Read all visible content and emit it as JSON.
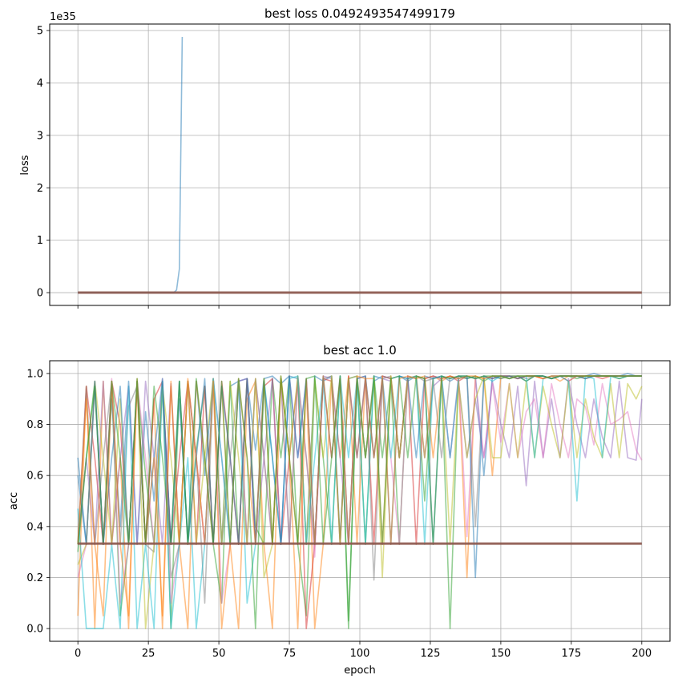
{
  "chart_data": [
    {
      "type": "line",
      "title": "best loss 0.0492493547499179",
      "xlabel": "",
      "ylabel": "loss",
      "offset_text": "1e35",
      "scale": 1e+35,
      "xlim": [
        -10,
        210
      ],
      "ylim": [
        -0.244,
        5.124
      ],
      "xticks": [
        0,
        25,
        50,
        75,
        100,
        125,
        150,
        175,
        200
      ],
      "yticks": [
        0,
        1,
        2,
        3,
        4,
        5
      ],
      "ytick_labels": [
        "0",
        "1",
        "2",
        "3",
        "4",
        "5"
      ],
      "grid": true,
      "series": [
        {
          "color": "#1f77b4",
          "alpha": 0.5,
          "x": [
            0,
            10,
            20,
            30,
            34,
            35,
            36,
            37
          ],
          "y": [
            0,
            0,
            0,
            0,
            0,
            0.05,
            0.45,
            4.88
          ]
        },
        {
          "color": "#8c564b",
          "alpha": 0.9,
          "x": [
            0,
            200
          ],
          "y": [
            0,
            0
          ]
        }
      ]
    },
    {
      "type": "line",
      "title": "best acc 1.0",
      "xlabel": "epoch",
      "ylabel": "acc",
      "xlim": [
        -10,
        210
      ],
      "ylim": [
        -0.05,
        1.05
      ],
      "xticks": [
        0,
        25,
        50,
        75,
        100,
        125,
        150,
        175,
        200
      ],
      "xtick_labels": [
        "0",
        "25",
        "50",
        "75",
        "100",
        "125",
        "150",
        "175",
        "200"
      ],
      "yticks": [
        0,
        0.2,
        0.4,
        0.6,
        0.8,
        1.0
      ],
      "ytick_labels": [
        "0.0",
        "0.2",
        "0.4",
        "0.6",
        "0.8",
        "1.0"
      ],
      "grid": true,
      "x_step": 3,
      "series": [
        {
          "color": "#1f77b4",
          "alpha": 0.5,
          "y": [
            0.67,
            0.33,
            0.95,
            0.33,
            0.9,
            0.4,
            0.97,
            0.33,
            0.85,
            0.5,
            0.96,
            0.33,
            0.9,
            0.35,
            0.97,
            0.6,
            0.98,
            0.33,
            0.95,
            0.97,
            0.98,
            0.7,
            0.98,
            0.99,
            0.96,
            0.99,
            0.98,
            0.33,
            0.99,
            0.97,
            0.99,
            0.35,
            0.98,
            0.99,
            0.67,
            0.97,
            0.99,
            0.98,
            0.99,
            0.97,
            0.99,
            0.98,
            0.33,
            0.99,
            0.97,
            0.99,
            0.98,
            0.99,
            0.6,
            0.99,
            0.99,
            0.98,
            0.99,
            0.97,
            0.99,
            0.99,
            0.98,
            0.99,
            0.99,
            0.99,
            0.99,
            1.0,
            0.99,
            0.99,
            0.99,
            1.0,
            0.99,
            0.99
          ]
        },
        {
          "color": "#ff7f0e",
          "alpha": 0.5,
          "y": [
            0.05,
            0.95,
            0.0,
            0.97,
            0.33,
            0.67,
            0.0,
            0.97,
            0.33,
            0.9,
            0.0,
            0.95,
            0.33,
            0.0,
            0.97,
            0.67,
            0.33,
            0.95,
            0.33,
            0.0,
            0.9,
            0.97,
            0.33,
            0.0,
            0.98,
            0.67,
            0.33,
            0.97,
            0.0,
            0.33,
            0.98,
            0.67,
            0.99,
            0.33,
            0.98,
            0.98,
            0.33,
            0.99,
            0.67,
            0.98,
            0.99,
            0.98,
            0.99,
            0.97,
            0.99,
            0.98,
            0.2,
            0.99,
            0.98,
            0.6,
            0.99,
            0.99,
            0.98,
            0.99,
            0.99,
            0.98,
            0.99,
            0.97,
            0.99,
            0.99,
            0.98,
            0.99,
            0.99,
            0.99,
            0.98,
            0.99,
            0.99,
            0.99
          ]
        },
        {
          "color": "#2ca02c",
          "alpha": 0.5,
          "y": [
            0.3,
            0.67,
            0.97,
            0.33,
            0.95,
            0.05,
            0.33,
            0.97,
            0.6,
            0.33,
            0.95,
            0.0,
            0.97,
            0.33,
            0.7,
            0.95,
            0.33,
            0.1,
            0.97,
            0.33,
            0.98,
            0.4,
            0.33,
            0.98,
            0.67,
            0.99,
            0.33,
            0.05,
            0.98,
            0.67,
            0.33,
            0.99,
            0.0,
            0.98,
            0.33,
            0.99,
            0.67,
            0.98,
            0.33,
            0.99,
            0.98,
            0.5,
            0.99,
            0.98,
            0.0,
            0.99,
            0.98,
            0.99,
            0.97,
            0.99,
            0.98,
            0.99,
            0.99,
            0.97,
            0.99,
            0.99,
            0.98,
            0.99,
            0.99,
            0.98,
            0.99,
            0.99,
            0.99,
            0.99,
            0.98,
            0.99,
            0.99,
            0.99
          ]
        },
        {
          "color": "#d62728",
          "alpha": 0.5,
          "y": [
            0.33,
            0.95,
            0.67,
            0.33,
            0.97,
            0.8,
            0.33,
            0.95,
            0.33,
            0.9,
            0.97,
            0.33,
            0.67,
            0.97,
            0.33,
            0.95,
            0.33,
            0.97,
            0.67,
            0.33,
            0.98,
            0.33,
            0.95,
            0.98,
            0.33,
            0.67,
            0.98,
            0.0,
            0.33,
            0.98,
            0.97,
            0.33,
            0.99,
            0.67,
            0.98,
            0.33,
            0.99,
            0.98,
            0.67,
            0.99,
            0.33,
            0.98,
            0.99,
            0.98,
            0.99,
            0.97,
            0.99,
            0.98,
            0.99,
            0.98,
            0.99,
            0.99,
            0.98,
            0.99,
            0.99,
            0.98,
            0.99,
            0.99,
            0.97,
            0.99,
            0.99,
            0.99,
            0.98,
            0.99,
            0.99,
            0.99,
            0.99,
            0.99
          ]
        },
        {
          "color": "#9467bd",
          "alpha": 0.5,
          "y": [
            0.33,
            0.67,
            0.33,
            0.97,
            0.33,
            0.67,
            0.95,
            0.33,
            0.97,
            0.67,
            0.33,
            0.96,
            0.33,
            0.97,
            0.67,
            0.33,
            0.98,
            0.67,
            0.33,
            0.97,
            0.98,
            0.33,
            0.67,
            0.98,
            0.33,
            0.99,
            0.67,
            0.98,
            0.33,
            0.99,
            0.98,
            0.67,
            0.33,
            0.98,
            0.99,
            0.67,
            0.98,
            0.97,
            0.67,
            0.98,
            0.99,
            0.67,
            0.95,
            0.98,
            0.67,
            0.97,
            0.67,
            0.9,
            0.67,
            0.97,
            0.8,
            0.67,
            0.95,
            0.56,
            0.97,
            0.67,
            0.9,
            0.67,
            0.98,
            0.8,
            0.67,
            0.9,
            0.75,
            0.67,
            0.97,
            0.67,
            0.66,
            0.9
          ]
        },
        {
          "color": "#e377c2",
          "alpha": 0.5,
          "y": [
            0.2,
            0.33,
            0.97,
            0.33,
            0.98,
            0.1,
            0.33,
            0.97,
            0.67,
            0.33,
            0.98,
            0.1,
            0.33,
            0.97,
            0.67,
            0.33,
            0.98,
            0.1,
            0.33,
            0.97,
            0.33,
            0.98,
            0.67,
            0.33,
            0.98,
            0.33,
            0.99,
            0.67,
            0.28,
            0.98,
            0.67,
            0.99,
            0.33,
            0.98,
            0.67,
            0.99,
            0.98,
            0.67,
            0.33,
            0.99,
            0.98,
            0.67,
            0.99,
            0.98,
            0.67,
            0.99,
            0.36,
            0.98,
            0.67,
            0.96,
            0.73,
            0.96,
            0.67,
            0.85,
            0.9,
            0.67,
            0.96,
            0.8,
            0.67,
            0.9,
            0.87,
            0.72,
            0.96,
            0.8,
            0.82,
            0.85,
            0.7,
            0.66
          ]
        },
        {
          "color": "#7f7f7f",
          "alpha": 0.5,
          "y": [
            0.33,
            0.95,
            0.33,
            0.67,
            0.97,
            0.33,
            0.87,
            0.95,
            0.33,
            0.3,
            0.97,
            0.2,
            0.33,
            0.97,
            0.67,
            0.1,
            0.97,
            0.33,
            0.67,
            0.98,
            0.33,
            0.98,
            0.67,
            0.33,
            0.98,
            0.33,
            0.99,
            0.67,
            0.33,
            0.98,
            0.99,
            0.33,
            0.98,
            0.67,
            0.99,
            0.19,
            0.98,
            0.99,
            0.67,
            0.98,
            0.99,
            0.97,
            0.98,
            0.67,
            0.99,
            0.98,
            0.99,
            0.4,
            0.98,
            0.99,
            0.98,
            0.99,
            0.99,
            0.98,
            0.99,
            0.99,
            0.98,
            0.99,
            0.99,
            0.99,
            0.98,
            0.99,
            0.99,
            0.99,
            0.99,
            0.99,
            0.99,
            0.99
          ]
        },
        {
          "color": "#bcbd22",
          "alpha": 0.5,
          "y": [
            0.25,
            0.33,
            0.97,
            0.67,
            0.33,
            0.9,
            0.33,
            0.97,
            0.0,
            0.33,
            0.95,
            0.67,
            0.33,
            0.97,
            0.33,
            0.67,
            0.98,
            0.33,
            0.97,
            0.67,
            0.33,
            0.98,
            0.2,
            0.33,
            0.98,
            0.67,
            0.99,
            0.33,
            0.98,
            0.67,
            0.99,
            0.33,
            0.98,
            0.99,
            0.67,
            0.98,
            0.2,
            0.99,
            0.67,
            0.98,
            0.99,
            0.67,
            0.98,
            0.99,
            0.33,
            0.97,
            0.67,
            0.9,
            0.99,
            0.67,
            0.67,
            0.96,
            0.67,
            0.97,
            0.67,
            0.95,
            0.8,
            0.67,
            0.97,
            0.67,
            0.9,
            0.75,
            0.67,
            0.96,
            0.67,
            0.96,
            0.9,
            0.95
          ]
        },
        {
          "color": "#17becf",
          "alpha": 0.5,
          "y": [
            0.47,
            0.0,
            0.0,
            0.0,
            0.33,
            0.0,
            0.95,
            0.0,
            0.33,
            0.0,
            0.97,
            0.0,
            0.33,
            0.67,
            0.0,
            0.33,
            0.98,
            0.67,
            0.33,
            0.97,
            0.1,
            0.33,
            0.98,
            0.67,
            0.33,
            0.98,
            0.99,
            0.33,
            0.67,
            0.98,
            0.33,
            0.99,
            0.67,
            0.98,
            0.33,
            0.99,
            0.98,
            0.67,
            0.99,
            0.98,
            0.99,
            0.33,
            0.98,
            0.99,
            0.67,
            0.98,
            0.99,
            0.98,
            0.99,
            0.97,
            0.99,
            0.98,
            0.99,
            0.99,
            0.67,
            0.98,
            0.99,
            0.99,
            0.97,
            0.5,
            0.99,
            0.98,
            0.67,
            0.99,
            0.98,
            0.99,
            0.99,
            0.99
          ]
        },
        {
          "color": "#1f77b4",
          "alpha": 0.5,
          "y": [
            0.6,
            0.33,
            0.97,
            0.33,
            0.67,
            0.95,
            0.33,
            0.97,
            0.33,
            0.67,
            0.98,
            0.33,
            0.97,
            0.33,
            0.67,
            0.98,
            0.33,
            0.95,
            0.67,
            0.33,
            0.98,
            0.33,
            0.97,
            0.67,
            0.33,
            0.99,
            0.67,
            0.98,
            0.33,
            0.99,
            0.67,
            0.98,
            0.33,
            0.98,
            0.99,
            0.67,
            0.98,
            0.33,
            0.99,
            0.98,
            0.67,
            0.99,
            0.98,
            0.99,
            0.98,
            0.99,
            0.99,
            0.2,
            0.99,
            0.98,
            0.99,
            0.99,
            0.98,
            0.99,
            0.99,
            0.99,
            0.98,
            0.99,
            0.99,
            0.99,
            0.98,
            0.99,
            0.99,
            0.99,
            0.99,
            0.99,
            0.99,
            0.99
          ]
        },
        {
          "color": "#ff7f0e",
          "alpha": 0.5,
          "y": [
            0.33,
            0.9,
            0.33,
            0.05,
            0.97,
            0.33,
            0.05,
            0.98,
            0.33,
            0.67,
            0.05,
            0.97,
            0.33,
            0.98,
            0.67,
            0.33,
            0.97,
            0.0,
            0.33,
            0.98,
            0.67,
            0.33,
            0.98,
            0.33,
            0.99,
            0.67,
            0.0,
            0.98,
            0.33,
            0.99,
            0.67,
            0.98,
            0.33,
            0.99,
            0.98,
            0.67,
            0.99,
            0.33,
            0.98,
            0.99,
            0.98,
            0.99,
            0.67,
            0.98,
            0.99,
            0.98,
            0.99,
            0.99,
            0.98,
            0.99,
            0.99,
            0.98,
            0.99,
            0.99,
            0.99,
            0.98,
            0.99,
            0.99,
            0.99,
            0.99,
            0.99,
            0.99,
            0.99,
            0.99,
            0.99,
            0.99,
            0.99,
            0.99
          ]
        },
        {
          "color": "#2ca02c",
          "alpha": 0.5,
          "y": [
            0.33,
            0.67,
            0.95,
            0.33,
            0.97,
            0.67,
            0.33,
            0.98,
            0.33,
            0.95,
            0.67,
            0.33,
            0.97,
            0.33,
            0.98,
            0.67,
            0.33,
            0.97,
            0.33,
            0.98,
            0.67,
            0.0,
            0.98,
            0.33,
            0.99,
            0.67,
            0.33,
            0.98,
            0.99,
            0.33,
            0.67,
            0.99,
            0.03,
            0.98,
            0.67,
            0.99,
            0.33,
            0.98,
            0.99,
            0.67,
            0.99,
            0.98,
            0.33,
            0.99,
            0.98,
            0.99,
            0.99,
            0.98,
            0.99,
            0.99,
            0.99,
            0.98,
            0.99,
            0.99,
            0.99,
            0.99,
            0.98,
            0.99,
            0.99,
            0.99,
            0.99,
            0.99,
            0.99,
            0.99,
            0.99,
            0.99,
            0.99,
            0.99
          ]
        },
        {
          "color": "#8c564b",
          "alpha": 0.9,
          "y": [
            0.333,
            0.333,
            0.333,
            0.333,
            0.333,
            0.333,
            0.333,
            0.333,
            0.333,
            0.333,
            0.333,
            0.333,
            0.333,
            0.333,
            0.333,
            0.333,
            0.333,
            0.333,
            0.333,
            0.333,
            0.333,
            0.333,
            0.333,
            0.333,
            0.333,
            0.333,
            0.333,
            0.333,
            0.333,
            0.333,
            0.333,
            0.333,
            0.333,
            0.333,
            0.333,
            0.333,
            0.333,
            0.333,
            0.333,
            0.333,
            0.333,
            0.333,
            0.333,
            0.333,
            0.333,
            0.333,
            0.333,
            0.333,
            0.333,
            0.333,
            0.333,
            0.333,
            0.333,
            0.333,
            0.333,
            0.333,
            0.333,
            0.333,
            0.333,
            0.333,
            0.333,
            0.333,
            0.333,
            0.333,
            0.333,
            0.333,
            0.333,
            0.333
          ]
        }
      ]
    }
  ]
}
